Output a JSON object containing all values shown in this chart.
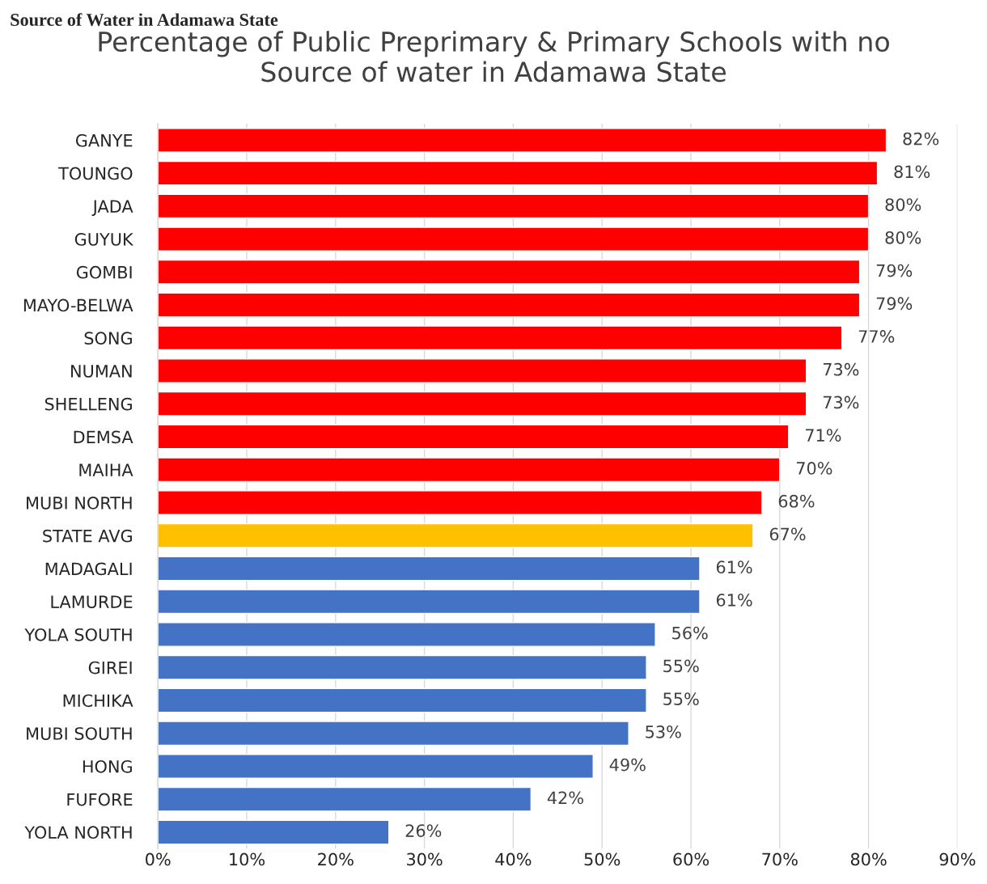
{
  "chart_data": {
    "type": "bar",
    "orientation": "horizontal",
    "title": "Percentage of Public Preprimary & Primary Schools with no\nSource of water in Adamawa State",
    "categories": [
      "GANYE",
      "TOUNGO",
      "JADA",
      "GUYUK",
      "GOMBI",
      "MAYO-BELWA",
      "SONG",
      "NUMAN",
      "SHELLENG",
      "DEMSA",
      "MAIHA",
      "MUBI NORTH",
      "STATE AVG",
      "MADAGALI",
      "LAMURDE",
      "YOLA SOUTH",
      "GIREI",
      "MICHIKA",
      "MUBI SOUTH",
      "HONG",
      "FUFORE",
      "YOLA NORTH"
    ],
    "values": [
      82,
      81,
      80,
      80,
      79,
      79,
      77,
      73,
      73,
      71,
      70,
      68,
      67,
      61,
      61,
      56,
      55,
      55,
      53,
      49,
      42,
      26
    ],
    "value_labels": [
      "82%",
      "81%",
      "80%",
      "80%",
      "79%",
      "79%",
      "77%",
      "73%",
      "73%",
      "71%",
      "70%",
      "68%",
      "67%",
      "61%",
      "61%",
      "56%",
      "55%",
      "55%",
      "53%",
      "49%",
      "42%",
      "26%"
    ],
    "colors": [
      "#ff0000",
      "#ff0000",
      "#ff0000",
      "#ff0000",
      "#ff0000",
      "#ff0000",
      "#ff0000",
      "#ff0000",
      "#ff0000",
      "#ff0000",
      "#ff0000",
      "#ff0000",
      "#ffc000",
      "#4472c4",
      "#4472c4",
      "#4472c4",
      "#4472c4",
      "#4472c4",
      "#4472c4",
      "#4472c4",
      "#4472c4",
      "#4472c4"
    ],
    "xlim": [
      0,
      90
    ],
    "xticks": [
      {
        "value": 0,
        "label": "0%"
      },
      {
        "value": 10,
        "label": "10%"
      },
      {
        "value": 20,
        "label": "20%"
      },
      {
        "value": 30,
        "label": "30%"
      },
      {
        "value": 40,
        "label": "40%"
      },
      {
        "value": 50,
        "label": "50%"
      },
      {
        "value": 60,
        "label": "60%"
      },
      {
        "value": 70,
        "label": "70%"
      },
      {
        "value": 80,
        "label": "80%"
      },
      {
        "value": 90,
        "label": "90%"
      }
    ],
    "grid": "x",
    "annotations": [
      "Source of Water in Adamawa State"
    ]
  }
}
